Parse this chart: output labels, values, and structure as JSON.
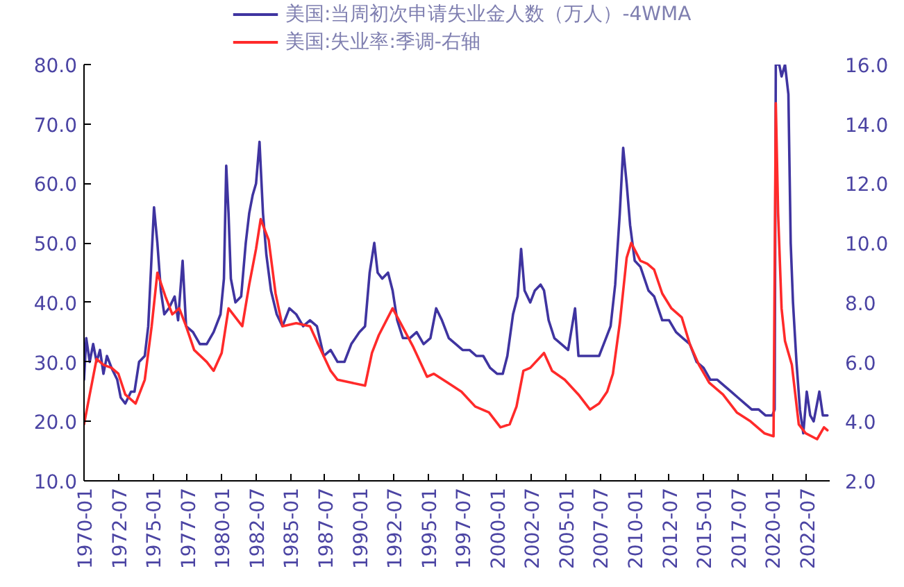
{
  "chart_data": {
    "type": "line",
    "xlim": [
      "1970-01",
      "2024-03"
    ],
    "xticks": [
      "1970-01",
      "1972-07",
      "1975-01",
      "1977-07",
      "1980-01",
      "1982-07",
      "1985-01",
      "1987-07",
      "1990-01",
      "1992-07",
      "1995-01",
      "1997-07",
      "2000-01",
      "2002-07",
      "2005-01",
      "2007-07",
      "2010-01",
      "2012-07",
      "2015-01",
      "2017-07",
      "2020-01",
      "2022-07"
    ],
    "ylim": [
      10,
      80
    ],
    "yticks": [
      {
        "value": 10,
        "label": "10.0"
      },
      {
        "value": 20,
        "label": "20.0"
      },
      {
        "value": 30,
        "label": "30.0"
      },
      {
        "value": 40,
        "label": "40.0"
      },
      {
        "value": 50,
        "label": "50.0"
      },
      {
        "value": 60,
        "label": "60.0"
      },
      {
        "value": 70,
        "label": "70.0"
      },
      {
        "value": 80,
        "label": "80.0"
      }
    ],
    "y2lim": [
      2,
      16
    ],
    "y2ticks": [
      {
        "value": 2,
        "label": "2.0"
      },
      {
        "value": 4,
        "label": "4.0"
      },
      {
        "value": 6,
        "label": "6.0"
      },
      {
        "value": 8,
        "label": "8.0"
      },
      {
        "value": 10,
        "label": "10.0"
      },
      {
        "value": 12,
        "label": "12.0"
      },
      {
        "value": 14,
        "label": "14.0"
      },
      {
        "value": 16,
        "label": "16.0"
      }
    ],
    "grid": false,
    "legend": "top",
    "series": [
      {
        "name": "美国:当周初次申请失业金人数（万人）-4WMA",
        "color": "#3f34a0",
        "x": [
          "1970-01",
          "1970-03",
          "1970-06",
          "1970-09",
          "1970-12",
          "1971-03",
          "1971-06",
          "1971-09",
          "1972-01",
          "1972-06",
          "1972-09",
          "1973-01",
          "1973-06",
          "1973-09",
          "1974-01",
          "1974-06",
          "1974-09",
          "1974-12",
          "1975-02",
          "1975-05",
          "1975-08",
          "1975-11",
          "1976-03",
          "1976-08",
          "1976-11",
          "1977-03",
          "1977-06",
          "1977-12",
          "1978-06",
          "1978-12",
          "1979-06",
          "1979-12",
          "1980-03",
          "1980-05",
          "1980-07",
          "1980-09",
          "1981-01",
          "1981-06",
          "1981-10",
          "1982-01",
          "1982-04",
          "1982-07",
          "1982-10",
          "1983-01",
          "1983-04",
          "1983-08",
          "1984-01",
          "1984-06",
          "1984-12",
          "1985-06",
          "1985-12",
          "1986-06",
          "1986-12",
          "1987-06",
          "1987-12",
          "1988-06",
          "1988-12",
          "1989-06",
          "1990-01",
          "1990-06",
          "1990-10",
          "1991-02",
          "1991-05",
          "1991-09",
          "1992-02",
          "1992-06",
          "1992-10",
          "1993-03",
          "1993-09",
          "1994-03",
          "1994-09",
          "1995-03",
          "1995-08",
          "1996-01",
          "1996-07",
          "1997-01",
          "1997-07",
          "1998-01",
          "1998-07",
          "1999-01",
          "1999-07",
          "2000-01",
          "2000-06",
          "2000-10",
          "2001-03",
          "2001-07",
          "2001-10",
          "2002-01",
          "2002-06",
          "2002-10",
          "2003-03",
          "2003-06",
          "2003-10",
          "2004-03",
          "2004-09",
          "2005-03",
          "2005-09",
          "2005-12",
          "2006-06",
          "2006-12",
          "2007-06",
          "2007-12",
          "2008-04",
          "2008-08",
          "2008-12",
          "2009-03",
          "2009-06",
          "2009-09",
          "2010-01",
          "2010-06",
          "2011-01",
          "2011-06",
          "2012-01",
          "2012-07",
          "2013-01",
          "2013-07",
          "2014-01",
          "2014-07",
          "2015-01",
          "2015-07",
          "2016-01",
          "2016-07",
          "2017-01",
          "2017-07",
          "2018-01",
          "2018-07",
          "2019-01",
          "2019-07",
          "2020-01",
          "2020-03",
          "2020-04",
          "2020-07",
          "2020-09",
          "2020-12",
          "2021-03",
          "2021-05",
          "2021-07",
          "2021-10",
          "2022-01",
          "2022-04",
          "2022-07",
          "2022-10",
          "2023-01",
          "2023-06",
          "2023-09",
          "2024-01"
        ],
        "values": [
          27,
          34,
          30,
          33,
          30,
          32,
          28,
          31,
          29,
          27,
          24,
          23,
          25,
          25,
          30,
          31,
          36,
          48,
          56,
          50,
          42,
          38,
          39,
          41,
          37,
          47,
          36,
          35,
          33,
          33,
          35,
          38,
          44,
          63,
          55,
          44,
          40,
          41,
          50,
          55,
          58,
          60,
          67,
          55,
          48,
          42,
          38,
          36,
          39,
          38,
          36,
          37,
          36,
          31,
          32,
          30,
          30,
          33,
          35,
          36,
          45,
          50,
          45,
          44,
          45,
          42,
          37,
          34,
          34,
          35,
          33,
          34,
          39,
          37,
          34,
          33,
          32,
          32,
          31,
          31,
          29,
          28,
          28,
          31,
          38,
          41,
          49,
          42,
          40,
          42,
          43,
          42,
          37,
          34,
          33,
          32,
          39,
          31,
          31,
          31,
          31,
          34,
          36,
          43,
          55,
          66,
          60,
          53,
          47,
          46,
          42,
          41,
          37,
          37,
          35,
          34,
          33,
          30,
          29,
          27,
          27,
          26,
          25,
          24,
          23,
          22,
          22,
          21,
          21,
          22,
          80,
          80,
          78,
          80,
          75,
          50,
          40,
          30,
          22,
          18,
          25,
          21,
          20,
          25,
          21,
          21
        ]
      },
      {
        "name": "美国:失业率:季调-右轴",
        "color": "#ff2a2a",
        "axis": "y2",
        "x": [
          "1970-01",
          "1970-06",
          "1970-12",
          "1971-06",
          "1972-01",
          "1972-07",
          "1973-01",
          "1973-10",
          "1974-06",
          "1974-12",
          "1975-05",
          "1975-12",
          "1976-06",
          "1976-12",
          "1977-06",
          "1978-01",
          "1978-12",
          "1979-06",
          "1980-01",
          "1980-07",
          "1981-01",
          "1981-07",
          "1982-01",
          "1982-07",
          "1982-11",
          "1983-06",
          "1983-12",
          "1984-06",
          "1985-06",
          "1986-06",
          "1987-01",
          "1987-12",
          "1988-06",
          "1989-06",
          "1990-06",
          "1990-12",
          "1991-06",
          "1992-06",
          "1993-01",
          "1993-12",
          "1994-12",
          "1995-06",
          "1996-06",
          "1997-06",
          "1998-06",
          "1999-06",
          "2000-04",
          "2000-12",
          "2001-06",
          "2001-12",
          "2002-06",
          "2003-06",
          "2004-01",
          "2004-12",
          "2005-12",
          "2006-10",
          "2007-06",
          "2008-01",
          "2008-06",
          "2008-12",
          "2009-06",
          "2009-10",
          "2010-06",
          "2010-12",
          "2011-06",
          "2012-01",
          "2012-09",
          "2013-06",
          "2014-01",
          "2014-09",
          "2015-06",
          "2016-06",
          "2017-06",
          "2018-06",
          "2019-06",
          "2020-02",
          "2020-04",
          "2020-06",
          "2020-09",
          "2020-12",
          "2021-06",
          "2021-12",
          "2022-06",
          "2023-04",
          "2023-10",
          "2024-01"
        ],
        "values": [
          3.9,
          4.9,
          6.1,
          5.9,
          5.8,
          5.6,
          4.9,
          4.6,
          5.4,
          7.2,
          9.0,
          8.2,
          7.6,
          7.8,
          7.2,
          6.4,
          6.0,
          5.7,
          6.3,
          7.8,
          7.5,
          7.2,
          8.6,
          9.8,
          10.8,
          10.1,
          8.3,
          7.2,
          7.3,
          7.2,
          6.6,
          5.7,
          5.4,
          5.3,
          5.2,
          6.3,
          6.9,
          7.8,
          7.3,
          6.5,
          5.5,
          5.6,
          5.3,
          5.0,
          4.5,
          4.3,
          3.8,
          3.9,
          4.5,
          5.7,
          5.8,
          6.3,
          5.7,
          5.4,
          4.9,
          4.4,
          4.6,
          5.0,
          5.6,
          7.3,
          9.5,
          10.0,
          9.4,
          9.3,
          9.1,
          8.3,
          7.8,
          7.5,
          6.6,
          5.9,
          5.3,
          4.9,
          4.3,
          4.0,
          3.6,
          3.5,
          14.7,
          11.0,
          7.8,
          6.7,
          5.9,
          3.9,
          3.6,
          3.4,
          3.8,
          3.7
        ]
      }
    ]
  }
}
